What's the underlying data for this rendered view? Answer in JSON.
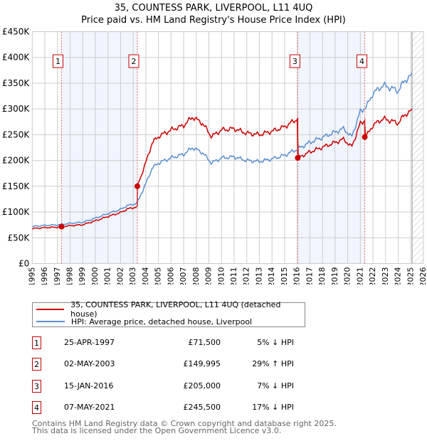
{
  "chart_data": {
    "type": "line",
    "title": "35, COUNTESS PARK, LIVERPOOL, L11 4UQ",
    "subtitle": "Price paid vs. HM Land Registry's House Price Index (HPI)",
    "xlim": [
      1995,
      2026
    ],
    "ylim": [
      0,
      450000
    ],
    "x_ticks": [
      "1995",
      "1996",
      "1997",
      "1998",
      "1999",
      "2000",
      "2001",
      "2002",
      "2003",
      "2004",
      "2005",
      "2006",
      "2007",
      "2008",
      "2009",
      "2010",
      "2011",
      "2012",
      "2013",
      "2014",
      "2015",
      "2016",
      "2017",
      "2018",
      "2019",
      "2020",
      "2021",
      "2022",
      "2023",
      "2024",
      "2025",
      "2026"
    ],
    "y_ticks": [
      {
        "value": 0,
        "label": "£0"
      },
      {
        "value": 50000,
        "label": "£50K"
      },
      {
        "value": 100000,
        "label": "£100K"
      },
      {
        "value": 150000,
        "label": "£150K"
      },
      {
        "value": 200000,
        "label": "£200K"
      },
      {
        "value": 250000,
        "label": "£250K"
      },
      {
        "value": 300000,
        "label": "£300K"
      },
      {
        "value": 350000,
        "label": "£350K"
      },
      {
        "value": 400000,
        "label": "£400K"
      },
      {
        "value": 450000,
        "label": "£450K"
      }
    ],
    "grid": true,
    "forecast_hatch_from": 2025.1,
    "shaded_ranges": [
      [
        1997.32,
        2003.33
      ],
      [
        2016.04,
        2021.35
      ]
    ],
    "hpi_series": {
      "name": "HPI: Average price, detached house, Liverpool",
      "color": "#5b8fd0",
      "x": [
        1995,
        1996,
        1997,
        1998,
        1999,
        2000,
        2001,
        2002,
        2002.5,
        2003.3,
        2004,
        2004.5,
        2005,
        2006,
        2007,
        2007.7,
        2008.5,
        2009.2,
        2010,
        2011,
        2012,
        2013,
        2014,
        2015,
        2016,
        2017,
        2018,
        2019,
        2019.7,
        2020.3,
        2021,
        2021.5,
        2022,
        2022.8,
        2023.5,
        2024,
        2024.5,
        2025.1
      ],
      "y": [
        72000,
        74000,
        75000,
        78000,
        80000,
        88000,
        97000,
        105000,
        112000,
        117000,
        155000,
        185000,
        195000,
        205000,
        212000,
        225000,
        215000,
        195000,
        205000,
        207000,
        200000,
        198000,
        203000,
        210000,
        222000,
        235000,
        245000,
        255000,
        262000,
        245000,
        295000,
        305000,
        330000,
        346000,
        340000,
        335000,
        355000,
        365000
      ]
    },
    "property_series": {
      "name": "35, COUNTESS PARK, LIVERPOOL, L11 4UQ (detached house)",
      "color": "#cc0000"
    },
    "sales": [
      {
        "n": "1",
        "x": 1997.32,
        "price": 71500
      },
      {
        "n": "2",
        "x": 2003.33,
        "price": 149995
      },
      {
        "n": "3",
        "x": 2016.04,
        "price": 205000
      },
      {
        "n": "4",
        "x": 2021.35,
        "price": 245500
      }
    ]
  },
  "legend": {
    "property": "35, COUNTESS PARK, LIVERPOOL, L11 4UQ (detached house)",
    "hpi": "HPI: Average price, detached house, Liverpool"
  },
  "transactions": [
    {
      "n": "1",
      "date": "25-APR-1997",
      "price": "£71,500",
      "hpi": "5% ↓ HPI"
    },
    {
      "n": "2",
      "date": "02-MAY-2003",
      "price": "£149,995",
      "hpi": "29% ↑ HPI"
    },
    {
      "n": "3",
      "date": "15-JAN-2016",
      "price": "£205,000",
      "hpi": "7% ↓ HPI"
    },
    {
      "n": "4",
      "date": "07-MAY-2021",
      "price": "£245,500",
      "hpi": "17% ↓ HPI"
    }
  ],
  "footer": {
    "line1": "Contains HM Land Registry data © Crown copyright and database right 2025.",
    "line2": "This data is licensed under the Open Government Licence v3.0."
  }
}
